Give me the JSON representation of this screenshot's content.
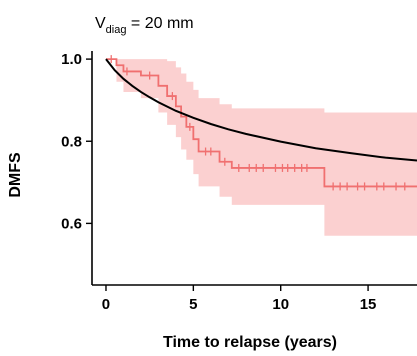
{
  "chart_data": {
    "type": "line",
    "title": {
      "prefix": "V",
      "subscript": "diag",
      "suffix": " = 20 mm"
    },
    "xlabel": "Time to relapse (years)",
    "ylabel": "DMFS",
    "xlim": [
      -0.8,
      17.8
    ],
    "ylim": [
      0.45,
      1.01
    ],
    "x_ticks": [
      0,
      5,
      10,
      15
    ],
    "y_ticks": [
      0.6,
      0.8,
      1.0
    ],
    "x_tick_labels": [
      "0",
      "5",
      "10",
      "15"
    ],
    "y_tick_labels": [
      "0.6",
      "0.8",
      "1.0"
    ],
    "grid": false,
    "legend": "none",
    "colors": {
      "km": "#f07070",
      "ci": "#fbd0d0",
      "model": "#000000"
    },
    "series": [
      {
        "kind": "kaplan-meier-step",
        "x": [
          0.0,
          0.6,
          1.0,
          2.0,
          3.0,
          3.5,
          4.0,
          4.3,
          4.6,
          5.0,
          5.3,
          6.5,
          7.2,
          12.5,
          17.8
        ],
        "y": [
          1.0,
          0.985,
          0.97,
          0.96,
          0.935,
          0.91,
          0.885,
          0.86,
          0.835,
          0.805,
          0.775,
          0.75,
          0.735,
          0.69,
          0.69
        ],
        "censor_x": [
          0.3,
          1.2,
          2.5,
          3.8,
          4.8,
          5.7,
          6.0,
          6.8,
          7.6,
          8.2,
          8.6,
          9.0,
          9.7,
          10.1,
          10.4,
          10.8,
          11.2,
          11.5,
          13.0,
          13.4,
          13.8,
          14.4,
          14.8,
          15.5,
          15.9,
          16.6,
          17.1
        ]
      },
      {
        "kind": "model-curve",
        "x": [
          0.0,
          0.5,
          1.0,
          1.5,
          2.0,
          2.5,
          3.0,
          4.0,
          5.0,
          6.0,
          7.0,
          8.0,
          10.0,
          12.0,
          14.0,
          16.0,
          17.8
        ],
        "y": [
          1.0,
          0.973,
          0.952,
          0.935,
          0.92,
          0.907,
          0.895,
          0.874,
          0.857,
          0.842,
          0.829,
          0.818,
          0.799,
          0.783,
          0.771,
          0.76,
          0.753
        ]
      }
    ],
    "confidence_band": {
      "x": [
        0.0,
        0.6,
        1.0,
        2.0,
        3.0,
        3.5,
        4.0,
        4.3,
        4.6,
        5.0,
        5.3,
        6.5,
        7.2,
        12.5,
        17.8
      ],
      "upper": [
        1.0,
        1.0,
        1.0,
        1.0,
        1.0,
        0.995,
        0.98,
        0.965,
        0.945,
        0.925,
        0.905,
        0.89,
        0.88,
        0.87,
        0.87
      ],
      "lower": [
        1.0,
        0.945,
        0.92,
        0.905,
        0.87,
        0.84,
        0.81,
        0.78,
        0.755,
        0.72,
        0.69,
        0.665,
        0.645,
        0.57,
        0.57
      ]
    }
  }
}
